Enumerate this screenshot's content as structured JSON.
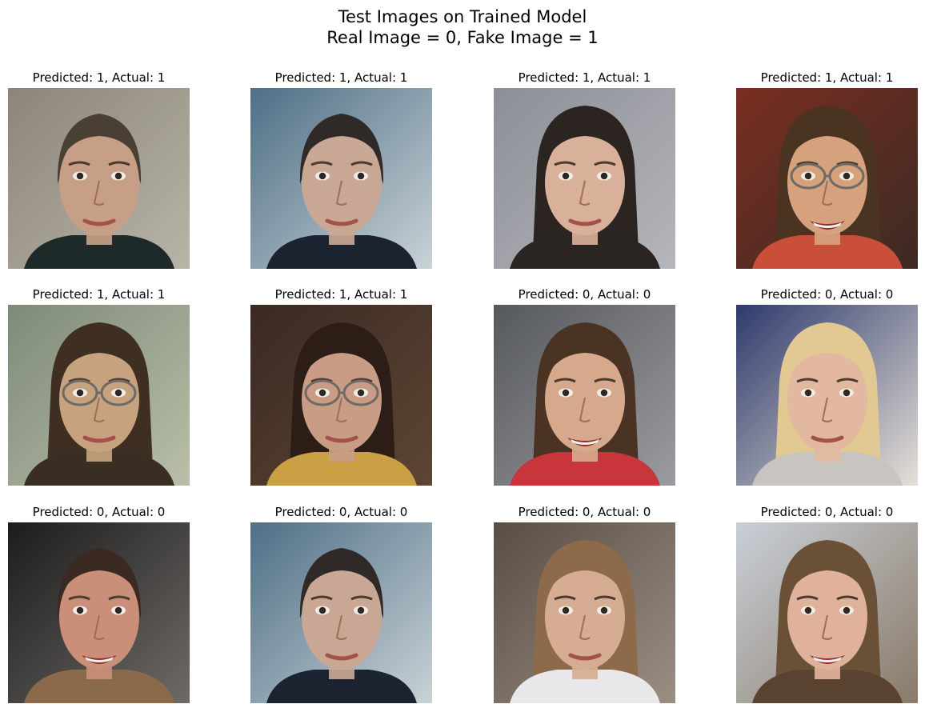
{
  "figure": {
    "title_line1": "Test Images on Trained Model",
    "title_line2": "Real Image = 0, Fake Image = 1"
  },
  "panels": [
    {
      "title": "Predicted: 1, Actual: 1",
      "predicted": 1,
      "actual": 1,
      "bg1": "#8b857a",
      "bg2": "#b9b4a8",
      "hair": "#4a3f33",
      "skin": "#c79f86",
      "shirt": "#1e2a2a",
      "hair_style": "short",
      "glasses": false,
      "smile": false
    },
    {
      "title": "Predicted: 1, Actual: 1",
      "predicted": 1,
      "actual": 1,
      "bg1": "#4e6f86",
      "bg2": "#c9d2d6",
      "hair": "#2f2a27",
      "skin": "#c8a795",
      "shirt": "#1b2230",
      "hair_style": "short",
      "glasses": false,
      "smile": false
    },
    {
      "title": "Predicted: 1, Actual: 1",
      "predicted": 1,
      "actual": 1,
      "bg1": "#8c8f96",
      "bg2": "#b4b6bb",
      "hair": "#2b2420",
      "skin": "#d9b09a",
      "shirt": "#2a2422",
      "hair_style": "long",
      "glasses": false,
      "smile": false
    },
    {
      "title": "Predicted: 1, Actual: 1",
      "predicted": 1,
      "actual": 1,
      "bg1": "#7a2e22",
      "bg2": "#3c2a22",
      "hair": "#4b3322",
      "skin": "#d6a27e",
      "shirt": "#c94f3a",
      "hair_style": "long",
      "glasses": true,
      "smile": true
    },
    {
      "title": "Predicted: 1, Actual: 1",
      "predicted": 1,
      "actual": 1,
      "bg1": "#7e8a78",
      "bg2": "#b9bfa8",
      "hair": "#3f2f22",
      "skin": "#c6a37e",
      "shirt": "#3a2e24",
      "hair_style": "long",
      "glasses": true,
      "smile": false
    },
    {
      "title": "Predicted: 1, Actual: 1",
      "predicted": 1,
      "actual": 1,
      "bg1": "#3a2a22",
      "bg2": "#5d4534",
      "hair": "#2c1d16",
      "skin": "#c99d85",
      "shirt": "#c9a044",
      "hair_style": "long",
      "glasses": true,
      "smile": false
    },
    {
      "title": "Predicted: 0, Actual: 0",
      "predicted": 0,
      "actual": 0,
      "bg1": "#55585c",
      "bg2": "#9a9ca0",
      "hair": "#4b3324",
      "skin": "#d7a98c",
      "shirt": "#c8353a",
      "hair_style": "long",
      "glasses": false,
      "smile": true
    },
    {
      "title": "Predicted: 0, Actual: 0",
      "predicted": 0,
      "actual": 0,
      "bg1": "#2d3a6b",
      "bg2": "#e6e0d8",
      "hair": "#e2c993",
      "skin": "#e2b8a0",
      "shirt": "#c8c4c0",
      "hair_style": "long",
      "glasses": false,
      "smile": false
    },
    {
      "title": "Predicted: 0, Actual: 0",
      "predicted": 0,
      "actual": 0,
      "bg1": "#1c1c1c",
      "bg2": "#6e6a66",
      "hair": "#3a2a22",
      "skin": "#c98f78",
      "shirt": "#8a6a4a",
      "hair_style": "short",
      "glasses": false,
      "smile": true
    },
    {
      "title": "Predicted: 0, Actual: 0",
      "predicted": 0,
      "actual": 0,
      "bg1": "#4e6f86",
      "bg2": "#c9d2d6",
      "hair": "#2f2a27",
      "skin": "#c8a795",
      "shirt": "#1b2230",
      "hair_style": "short",
      "glasses": false,
      "smile": false
    },
    {
      "title": "Predicted: 0, Actual: 0",
      "predicted": 0,
      "actual": 0,
      "bg1": "#5a4e44",
      "bg2": "#9b8f84",
      "hair": "#8d6b4a",
      "skin": "#d6ad93",
      "shirt": "#e8e8ea",
      "hair_style": "long",
      "glasses": false,
      "smile": false
    },
    {
      "title": "Predicted: 0, Actual: 0",
      "predicted": 0,
      "actual": 0,
      "bg1": "#c9d0d8",
      "bg2": "#8a7a68",
      "hair": "#6b5038",
      "skin": "#e0b29c",
      "shirt": "#5a4230",
      "hair_style": "long",
      "glasses": false,
      "smile": true
    }
  ]
}
